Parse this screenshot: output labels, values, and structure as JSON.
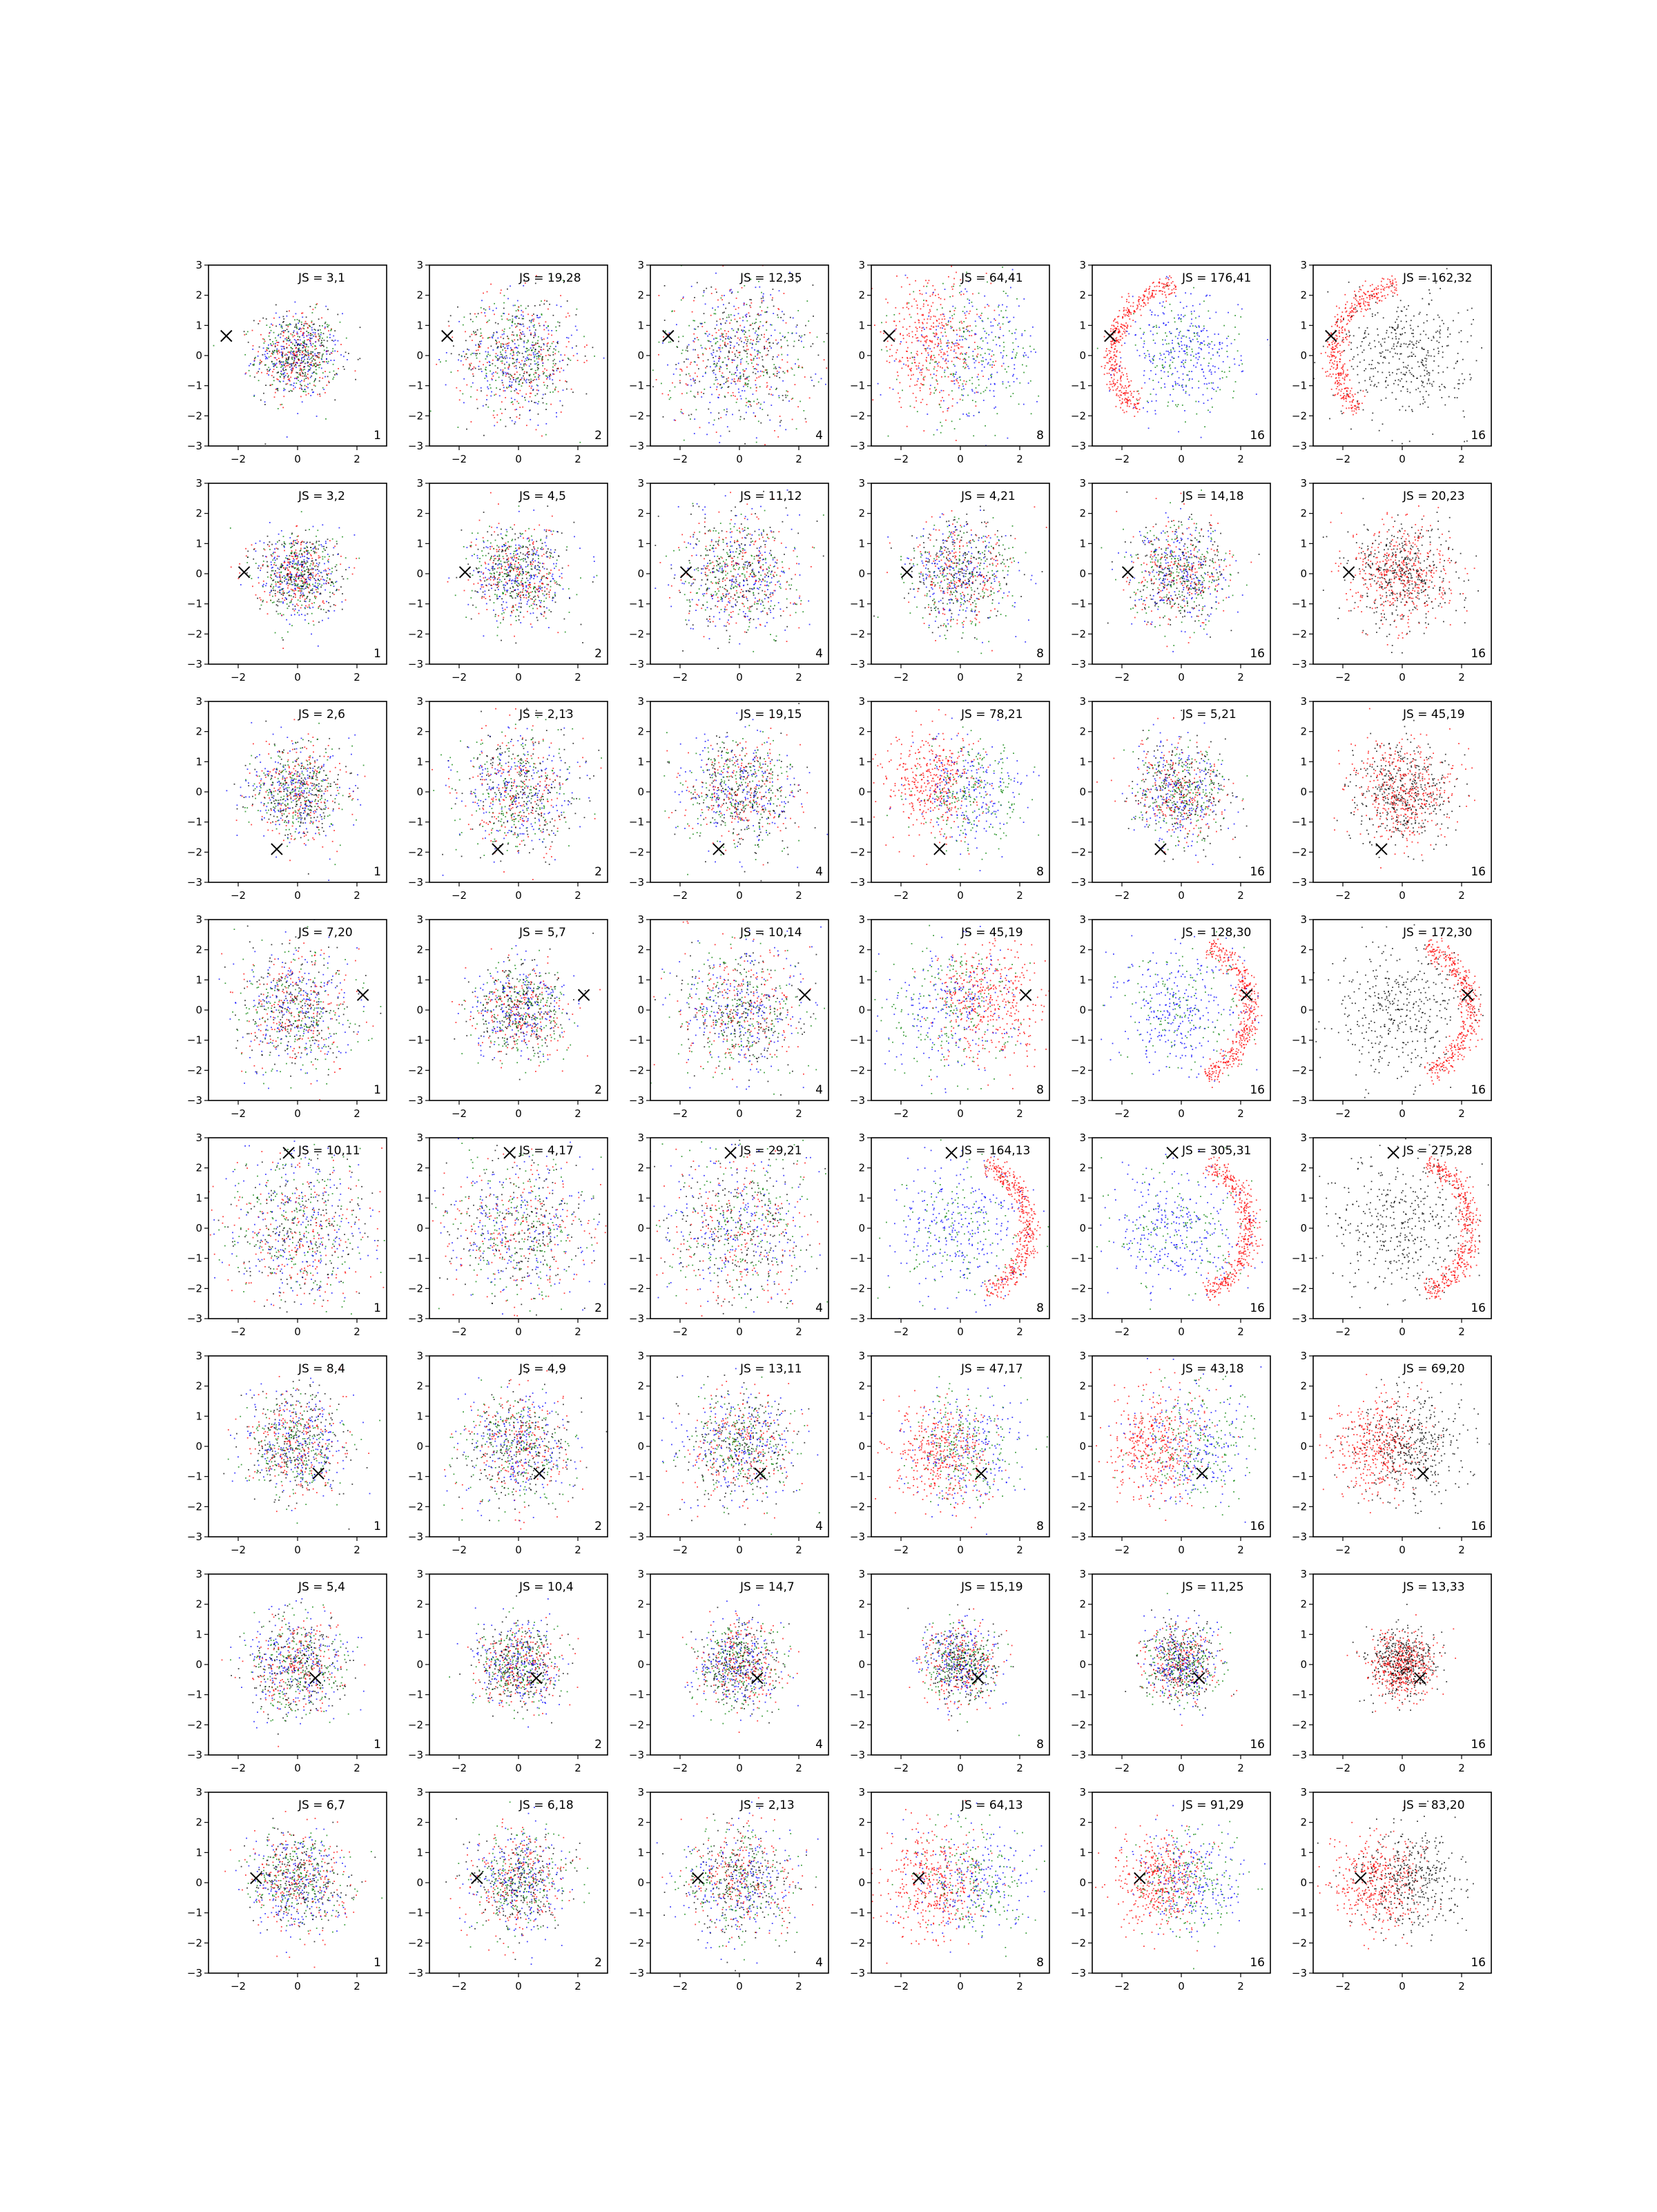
{
  "figure": {
    "rows": 8,
    "cols": 6,
    "colors": {
      "red": "#ff0000",
      "green": "#008000",
      "blue": "#0000ff",
      "black": "#000000",
      "axis": "#000000"
    }
  },
  "chart_data": {
    "type": "scatter",
    "xlim": [
      -3,
      3
    ],
    "ylim": [
      -3,
      3
    ],
    "xticks": [
      "−2",
      "0",
      "2"
    ],
    "yticks": [
      "−3",
      "−2",
      "−1",
      "0",
      "1",
      "2",
      "3"
    ],
    "grid": false,
    "rows": [
      {
        "marker_x": [
          -2.4,
          0.65
        ],
        "panels": [
          {
            "js": "JS = 3,1",
            "n": "1",
            "mode": "mixed",
            "sigma": 0.7
          },
          {
            "js": "JS = 19,28",
            "n": "2",
            "mode": "mixed",
            "sigma": 1.0
          },
          {
            "js": "JS = 12,35",
            "n": "4",
            "mode": "mixed",
            "sigma": 1.25
          },
          {
            "js": "JS = 64,41",
            "n": "8",
            "mode": "mixed_side",
            "sigma": 1.15,
            "side": [
              -1.0,
              0.4
            ]
          },
          {
            "js": "JS = 176,41",
            "n": "16",
            "mode": "crescent_rgb",
            "sigma": 1.0,
            "side": [
              -1.0,
              0.3
            ]
          },
          {
            "js": "JS = 162,32",
            "n": "16",
            "mode": "crescent_kr",
            "sigma": 1.1,
            "side": [
              -1.0,
              0.3
            ]
          }
        ]
      },
      {
        "marker_x": [
          -1.8,
          0.05
        ],
        "panels": [
          {
            "js": "JS = 3,2",
            "n": "1",
            "mode": "mixed",
            "sigma": 0.7
          },
          {
            "js": "JS = 4,5",
            "n": "2",
            "mode": "mixed",
            "sigma": 0.8
          },
          {
            "js": "JS = 11,12",
            "n": "4",
            "mode": "mixed",
            "sigma": 1.0
          },
          {
            "js": "JS = 4,21",
            "n": "8",
            "mode": "mixed",
            "sigma": 0.9
          },
          {
            "js": "JS = 14,18",
            "n": "16",
            "mode": "mixed",
            "sigma": 0.85
          },
          {
            "js": "JS = 20,23",
            "n": "16",
            "mode": "kr",
            "sigma": 0.85
          }
        ]
      },
      {
        "marker_x": [
          -0.7,
          -1.9
        ],
        "panels": [
          {
            "js": "JS = 2,6",
            "n": "1",
            "mode": "mixed",
            "sigma": 0.8
          },
          {
            "js": "JS = 2,13",
            "n": "2",
            "mode": "mixed",
            "sigma": 1.0
          },
          {
            "js": "JS = 19,15",
            "n": "4",
            "mode": "mixed",
            "sigma": 0.95
          },
          {
            "js": "JS = 78,21",
            "n": "8",
            "mode": "mixed_side",
            "sigma": 0.95,
            "side": [
              -0.9,
              0.2
            ]
          },
          {
            "js": "JS = 5,21",
            "n": "16",
            "mode": "mixed",
            "sigma": 0.8
          },
          {
            "js": "JS = 45,19",
            "n": "16",
            "mode": "kr",
            "sigma": 0.85
          }
        ]
      },
      {
        "marker_x": [
          2.2,
          0.5
        ],
        "panels": [
          {
            "js": "JS = 7,20",
            "n": "1",
            "mode": "mixed",
            "sigma": 1.0
          },
          {
            "js": "JS = 5,7",
            "n": "2",
            "mode": "mixed",
            "sigma": 0.8
          },
          {
            "js": "JS = 10,14",
            "n": "4",
            "mode": "mixed",
            "sigma": 1.1
          },
          {
            "js": "JS = 45,19",
            "n": "8",
            "mode": "mixed_side",
            "sigma": 1.1,
            "side": [
              1.0,
              0.2
            ]
          },
          {
            "js": "JS = 128,30",
            "n": "16",
            "mode": "crescent_rgb",
            "sigma": 1.1,
            "side": [
              1.0,
              0.0
            ]
          },
          {
            "js": "JS = 172,30",
            "n": "16",
            "mode": "crescent_kr",
            "sigma": 1.2,
            "side": [
              1.0,
              0.0
            ]
          }
        ]
      },
      {
        "marker_x": [
          -0.3,
          2.5
        ],
        "panels": [
          {
            "js": "JS = 10,11",
            "n": "1",
            "mode": "mixed",
            "sigma": 1.25
          },
          {
            "js": "JS = 4,17",
            "n": "2",
            "mode": "mixed",
            "sigma": 1.25
          },
          {
            "js": "JS = 29,21",
            "n": "4",
            "mode": "mixed",
            "sigma": 1.3
          },
          {
            "js": "JS = 164,13",
            "n": "8",
            "mode": "crescent_rgb",
            "sigma": 1.2,
            "side": [
              1.0,
              0.0
            ]
          },
          {
            "js": "JS = 305,31",
            "n": "16",
            "mode": "crescent_rgb",
            "sigma": 1.2,
            "side": [
              1.0,
              0.0
            ]
          },
          {
            "js": "JS = 275,28",
            "n": "16",
            "mode": "crescent_kr",
            "sigma": 1.25,
            "side": [
              1.0,
              0.0
            ]
          }
        ]
      },
      {
        "marker_x": [
          0.7,
          -0.9
        ],
        "panels": [
          {
            "js": "JS = 8,4",
            "n": "1",
            "mode": "mixed",
            "sigma": 0.85
          },
          {
            "js": "JS = 4,9",
            "n": "2",
            "mode": "mixed",
            "sigma": 0.95
          },
          {
            "js": "JS = 13,11",
            "n": "4",
            "mode": "mixed",
            "sigma": 0.95
          },
          {
            "js": "JS = 47,17",
            "n": "8",
            "mode": "mixed_side",
            "sigma": 0.95,
            "side": [
              -0.6,
              -0.2
            ]
          },
          {
            "js": "JS = 43,18",
            "n": "16",
            "mode": "mixed_side",
            "sigma": 1.0,
            "side": [
              -0.8,
              0.0
            ]
          },
          {
            "js": "JS = 69,20",
            "n": "16",
            "mode": "kr_side",
            "sigma": 0.9,
            "side": [
              -0.8,
              0.0
            ]
          }
        ]
      },
      {
        "marker_x": [
          0.6,
          -0.45
        ],
        "panels": [
          {
            "js": "JS = 5,4",
            "n": "1",
            "mode": "mixed",
            "sigma": 0.8
          },
          {
            "js": "JS = 10,4",
            "n": "2",
            "mode": "mixed",
            "sigma": 0.7
          },
          {
            "js": "JS = 14,7",
            "n": "4",
            "mode": "mixed",
            "sigma": 0.7
          },
          {
            "js": "JS = 15,19",
            "n": "8",
            "mode": "mixed",
            "sigma": 0.65
          },
          {
            "js": "JS = 11,25",
            "n": "16",
            "mode": "mixed",
            "sigma": 0.6
          },
          {
            "js": "JS = 13,33",
            "n": "16",
            "mode": "kr",
            "sigma": 0.55
          }
        ]
      },
      {
        "marker_x": [
          -1.4,
          0.15
        ],
        "panels": [
          {
            "js": "JS = 6,7",
            "n": "1",
            "mode": "mixed",
            "sigma": 0.85
          },
          {
            "js": "JS = 6,18",
            "n": "2",
            "mode": "mixed",
            "sigma": 0.85
          },
          {
            "js": "JS = 2,13",
            "n": "4",
            "mode": "mixed",
            "sigma": 0.95
          },
          {
            "js": "JS = 64,13",
            "n": "8",
            "mode": "mixed_side",
            "sigma": 0.95,
            "side": [
              -0.9,
              0.0
            ]
          },
          {
            "js": "JS = 91,29",
            "n": "16",
            "mode": "mixed_side",
            "sigma": 0.85,
            "side": [
              -0.8,
              0.0
            ]
          },
          {
            "js": "JS = 83,20",
            "n": "16",
            "mode": "kr_side",
            "sigma": 0.85,
            "side": [
              -0.8,
              0.0
            ]
          }
        ]
      }
    ]
  }
}
